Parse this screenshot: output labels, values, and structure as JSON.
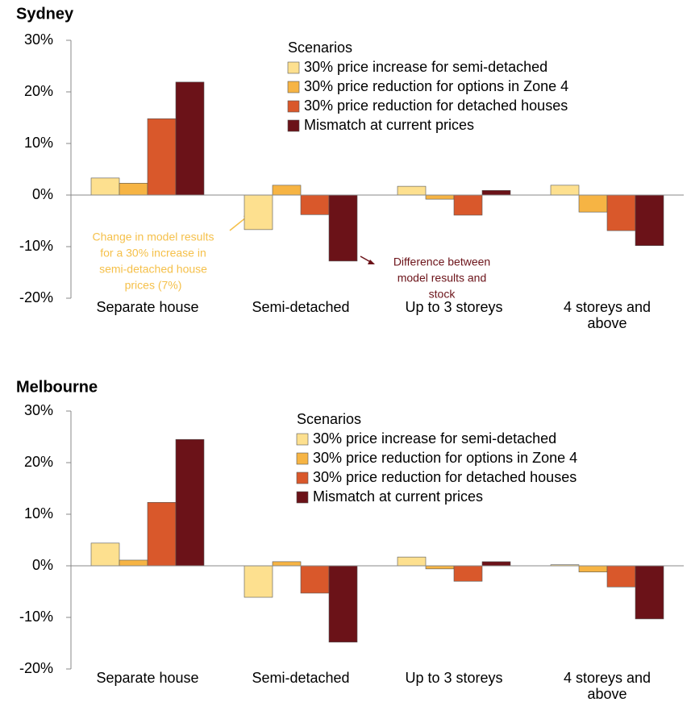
{
  "chart_data": [
    {
      "type": "bar",
      "title": "Sydney",
      "legend_title": "Scenarios",
      "categories": [
        "Separate house",
        "Semi-detached",
        "Up to 3 storeys",
        "4 storeys and above"
      ],
      "series": [
        {
          "name": "30% price increase for semi-detached",
          "color": "#fde08f",
          "values": [
            3.3,
            -6.7,
            1.7,
            1.9
          ]
        },
        {
          "name": "30% price reduction for options in Zone 4",
          "color": "#f6b444",
          "values": [
            2.3,
            1.9,
            -0.8,
            -3.3
          ]
        },
        {
          "name": "30% price reduction for detached houses",
          "color": "#d9582b",
          "values": [
            14.8,
            -3.8,
            -3.9,
            -6.9
          ]
        },
        {
          "name": "Mismatch at current prices",
          "color": "#6b1218",
          "values": [
            21.9,
            -12.8,
            0.9,
            -9.8
          ]
        }
      ],
      "ylim": [
        -20,
        30
      ],
      "yticks": [
        {
          "value": -20,
          "label": "-20%"
        },
        {
          "value": -10,
          "label": "-10%"
        },
        {
          "value": 0,
          "label": "0%"
        },
        {
          "value": 10,
          "label": "10%"
        },
        {
          "value": 20,
          "label": "20%"
        },
        {
          "value": 30,
          "label": "30%"
        }
      ],
      "annotations": [
        {
          "lines": [
            "Change in model results",
            "for a 30% increase in",
            "semi-detached house",
            "prices (7%)"
          ],
          "color": "#f5c04a"
        },
        {
          "lines": [
            "Difference between",
            "model results and",
            "stock"
          ],
          "color": "#6b1218"
        }
      ]
    },
    {
      "type": "bar",
      "title": "Melbourne",
      "legend_title": "Scenarios",
      "categories": [
        "Separate house",
        "Semi-detached",
        "Up to 3 storeys",
        "4 storeys and above"
      ],
      "series": [
        {
          "name": "30% price increase for semi-detached",
          "color": "#fde08f",
          "values": [
            4.4,
            -6.1,
            1.7,
            0.2
          ]
        },
        {
          "name": "30% price reduction for options in Zone 4",
          "color": "#f6b444",
          "values": [
            1.1,
            0.8,
            -0.6,
            -1.2
          ]
        },
        {
          "name": "30% price reduction for detached houses",
          "color": "#d9582b",
          "values": [
            12.3,
            -5.3,
            -3.0,
            -4.1
          ]
        },
        {
          "name": "Mismatch at current prices",
          "color": "#6b1218",
          "values": [
            24.5,
            -14.8,
            0.8,
            -10.3
          ]
        }
      ],
      "ylim": [
        -20,
        30
      ],
      "yticks": [
        {
          "value": -20,
          "label": "-20%"
        },
        {
          "value": -10,
          "label": "-10%"
        },
        {
          "value": 0,
          "label": "0%"
        },
        {
          "value": 10,
          "label": "10%"
        },
        {
          "value": 20,
          "label": "20%"
        },
        {
          "value": 30,
          "label": "30%"
        }
      ]
    }
  ]
}
